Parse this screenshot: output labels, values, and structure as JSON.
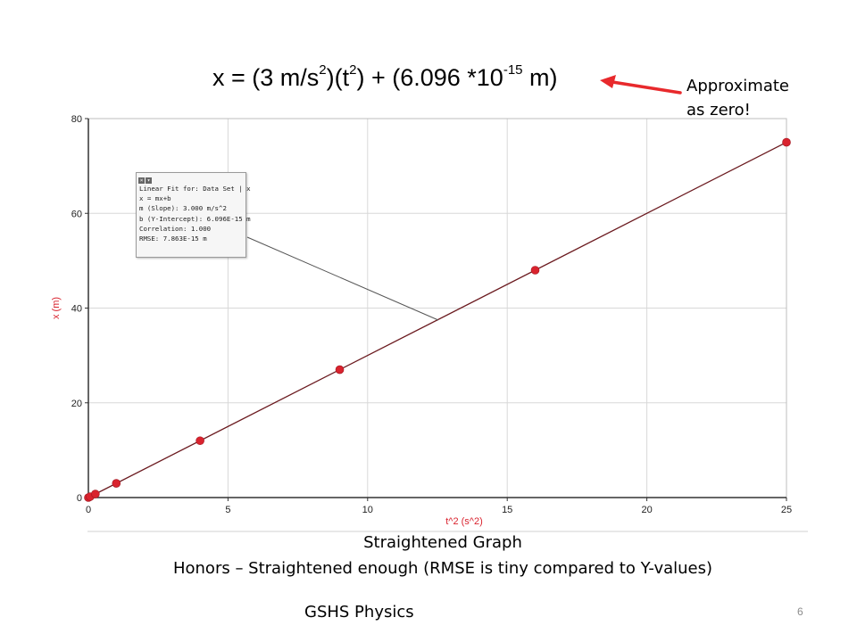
{
  "equation": {
    "prefix": "x = (3 m/s",
    "exp1": "2",
    "mid1": ")(t",
    "exp2": "2",
    "mid2": ") + (6.096 *10",
    "exp3": "-15",
    "suffix": " m)"
  },
  "annotation": {
    "line1": "Approximate",
    "line2": "as zero!",
    "arrow_color": "#e8292c"
  },
  "fit_box": {
    "title": "Linear Fit for: Data Set | x",
    "equation": "x = mx+b",
    "slope": "m (Slope): 3.000 m/s^2",
    "intercept": "b (Y-Intercept): 6.096E-15 m",
    "correlation": "Correlation: 1.000",
    "rmse": "RMSE: 7.863E-15 m"
  },
  "caption": {
    "title": "Straightened Graph",
    "subtitle": "Honors – Straightened enough (RMSE is tiny compared to Y-values)"
  },
  "footer": "GSHS Physics",
  "page_number": "6",
  "colors": {
    "point": "#d9232e",
    "fit_line": "#6b1a1f",
    "grid": "#d8d8d8",
    "ylabel": "#d9232e",
    "xlabel": "#d9232e"
  },
  "chart_data": {
    "type": "scatter",
    "xlabel": "t^2 (s^2)",
    "ylabel": "x (m)",
    "xlim": [
      0,
      25
    ],
    "ylim": [
      0,
      80
    ],
    "xticks": [
      0,
      5,
      10,
      15,
      20,
      25
    ],
    "yticks": [
      0,
      20,
      40,
      60,
      80
    ],
    "grid": true,
    "series": [
      {
        "x": [
          0,
          0.0625,
          0.25,
          1,
          4,
          9,
          16,
          25
        ],
        "y": [
          0,
          0.1875,
          0.75,
          3,
          12,
          27,
          48,
          75
        ]
      }
    ],
    "fit": {
      "slope": 3.0,
      "intercept": 6.096e-15
    }
  }
}
